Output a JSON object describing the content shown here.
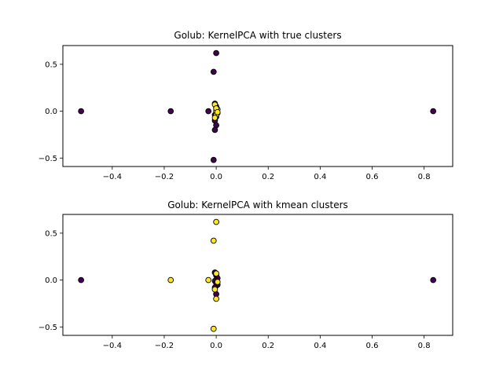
{
  "chart_data": [
    {
      "type": "scatter",
      "title": "Golub: KernelPCA with true clusters",
      "xlabel": "",
      "ylabel": "",
      "xlim": [
        -0.59,
        0.91
      ],
      "ylim": [
        -0.59,
        0.7
      ],
      "xticks": [
        -0.4,
        -0.2,
        0.0,
        0.2,
        0.4,
        0.6,
        0.8
      ],
      "xtick_labels": [
        "−0.4",
        "−0.2",
        "0.0",
        "0.2",
        "0.4",
        "0.6",
        "0.8"
      ],
      "yticks": [
        -0.5,
        0.0,
        0.5
      ],
      "ytick_labels": [
        "−0.5",
        "0.0",
        "0.5"
      ],
      "grid": false,
      "series": [
        {
          "color": "#440154",
          "points": [
            [
              -0.52,
              0.0
            ],
            [
              -0.175,
              0.0
            ],
            [
              0.835,
              0.0
            ],
            [
              0.0,
              0.62
            ],
            [
              -0.01,
              0.42
            ],
            [
              -0.01,
              -0.52
            ],
            [
              -0.03,
              0.0
            ],
            [
              -0.005,
              0.08
            ],
            [
              0.0,
              0.05
            ],
            [
              0.0,
              -0.02
            ],
            [
              -0.005,
              -0.04
            ],
            [
              0.0,
              -0.06
            ],
            [
              -0.005,
              -0.1
            ],
            [
              0.0,
              -0.15
            ],
            [
              -0.005,
              -0.2
            ]
          ]
        },
        {
          "color": "#fde725",
          "points": [
            [
              -0.005,
              0.07
            ],
            [
              0.005,
              0.02
            ],
            [
              0.0,
              0.0
            ],
            [
              0.005,
              -0.02
            ],
            [
              0.0,
              -0.04
            ],
            [
              -0.005,
              -0.07
            ],
            [
              0.0,
              0.03
            ],
            [
              0.005,
              -0.01
            ]
          ]
        }
      ]
    },
    {
      "type": "scatter",
      "title": "Golub: KernelPCA with kmean clusters",
      "xlabel": "",
      "ylabel": "",
      "xlim": [
        -0.59,
        0.91
      ],
      "ylim": [
        -0.59,
        0.7
      ],
      "xticks": [
        -0.4,
        -0.2,
        0.0,
        0.2,
        0.4,
        0.6,
        0.8
      ],
      "xtick_labels": [
        "−0.4",
        "−0.2",
        "0.0",
        "0.2",
        "0.4",
        "0.6",
        "0.8"
      ],
      "yticks": [
        -0.5,
        0.0,
        0.5
      ],
      "ytick_labels": [
        "−0.5",
        "0.0",
        "0.5"
      ],
      "grid": false,
      "series": [
        {
          "color": "#440154",
          "points": [
            [
              -0.52,
              0.0
            ],
            [
              0.835,
              0.0
            ],
            [
              -0.005,
              0.08
            ],
            [
              0.0,
              0.05
            ],
            [
              0.005,
              0.02
            ],
            [
              0.0,
              0.0
            ],
            [
              -0.005,
              -0.01
            ],
            [
              0.0,
              -0.03
            ],
            [
              0.005,
              -0.05
            ],
            [
              0.0,
              -0.06
            ],
            [
              -0.005,
              -0.08
            ],
            [
              0.0,
              -0.15
            ]
          ]
        },
        {
          "color": "#fde725",
          "points": [
            [
              -0.175,
              0.0
            ],
            [
              0.0,
              0.62
            ],
            [
              -0.01,
              0.42
            ],
            [
              -0.01,
              -0.52
            ],
            [
              -0.03,
              0.0
            ],
            [
              -0.005,
              -0.1
            ],
            [
              0.0,
              -0.2
            ],
            [
              0.0,
              0.07
            ],
            [
              0.005,
              -0.02
            ]
          ]
        }
      ]
    }
  ]
}
